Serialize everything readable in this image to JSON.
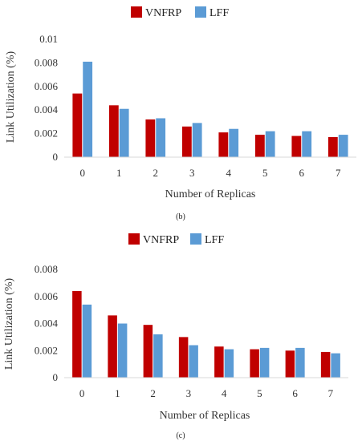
{
  "colors": {
    "vnfrp": "#c00000",
    "lff": "#5b9bd5",
    "axis": "#d9d9d9"
  },
  "chart_data": [
    {
      "type": "bar",
      "caption": "(b)",
      "categories": [
        "0",
        "1",
        "2",
        "3",
        "4",
        "5",
        "6",
        "7"
      ],
      "series": [
        {
          "name": "VNFRP",
          "values": [
            0.0054,
            0.0044,
            0.0032,
            0.0026,
            0.0021,
            0.0019,
            0.0018,
            0.0017
          ]
        },
        {
          "name": "LFF",
          "values": [
            0.0081,
            0.0041,
            0.0033,
            0.0029,
            0.0024,
            0.0022,
            0.0022,
            0.0019
          ]
        }
      ],
      "xlabel": "Number of Replicas",
      "ylabel": "Link Utilization (%)",
      "ylim": [
        0,
        0.01
      ],
      "yticks": [
        "0",
        "0.002",
        "0.004",
        "0.006",
        "0.008",
        "0.01"
      ],
      "grid": false,
      "legend": "top-center"
    },
    {
      "type": "bar",
      "caption": "(c)",
      "categories": [
        "0",
        "1",
        "2",
        "3",
        "4",
        "5",
        "6",
        "7"
      ],
      "series": [
        {
          "name": "VNFRP",
          "values": [
            0.0064,
            0.0046,
            0.0039,
            0.003,
            0.0023,
            0.0021,
            0.002,
            0.0019
          ]
        },
        {
          "name": "LFF",
          "values": [
            0.0054,
            0.004,
            0.0032,
            0.0024,
            0.0021,
            0.0022,
            0.0022,
            0.0018
          ]
        }
      ],
      "xlabel": "Number of Replicas",
      "ylabel": "Link Utilization (%)",
      "ylim": [
        0,
        0.008
      ],
      "yticks": [
        "0",
        "0.002",
        "0.004",
        "0.006",
        "0.008"
      ],
      "grid": false,
      "legend": "top-center"
    }
  ]
}
